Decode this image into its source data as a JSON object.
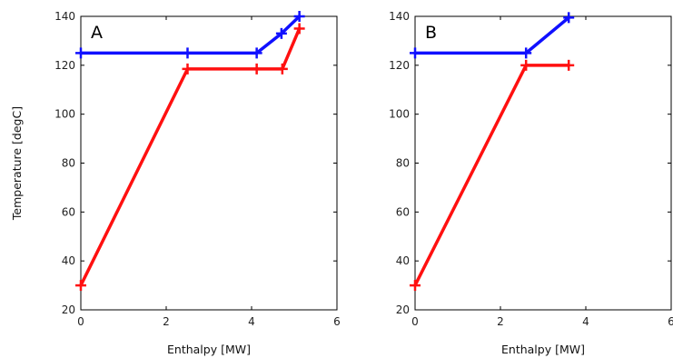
{
  "chart_data": [
    {
      "type": "line",
      "panel_label": "A",
      "xlabel": "Enthalpy [MW]",
      "ylabel": "Temperature [degC]",
      "xlim": [
        0,
        6
      ],
      "ylim": [
        20,
        140
      ],
      "xticks": [
        0,
        2,
        4,
        6
      ],
      "yticks": [
        20,
        40,
        60,
        80,
        100,
        120,
        140
      ],
      "grid": false,
      "series": [
        {
          "color": "#1010ff",
          "marker": "+",
          "x": [
            0,
            2.5,
            4.12,
            4.7,
            5.12
          ],
          "y": [
            125,
            125,
            125,
            133,
            140
          ]
        },
        {
          "color": "#ff1010",
          "marker": "+",
          "x": [
            0,
            2.5,
            4.12,
            4.72,
            5.12
          ],
          "y": [
            30,
            118.5,
            118.5,
            118.5,
            135
          ]
        }
      ]
    },
    {
      "type": "line",
      "panel_label": "B",
      "xlabel": "Enthalpy [MW]",
      "ylabel": "",
      "xlim": [
        0,
        6
      ],
      "ylim": [
        20,
        140
      ],
      "xticks": [
        0,
        2,
        4,
        6
      ],
      "yticks": [
        20,
        40,
        60,
        80,
        100,
        120,
        140
      ],
      "grid": false,
      "series": [
        {
          "color": "#1010ff",
          "marker": "+",
          "x": [
            0,
            2.6,
            3.6
          ],
          "y": [
            125,
            125,
            139.5
          ]
        },
        {
          "color": "#ff1010",
          "marker": "+",
          "x": [
            0,
            2.6,
            3.6
          ],
          "y": [
            30,
            120,
            120
          ]
        }
      ]
    }
  ]
}
